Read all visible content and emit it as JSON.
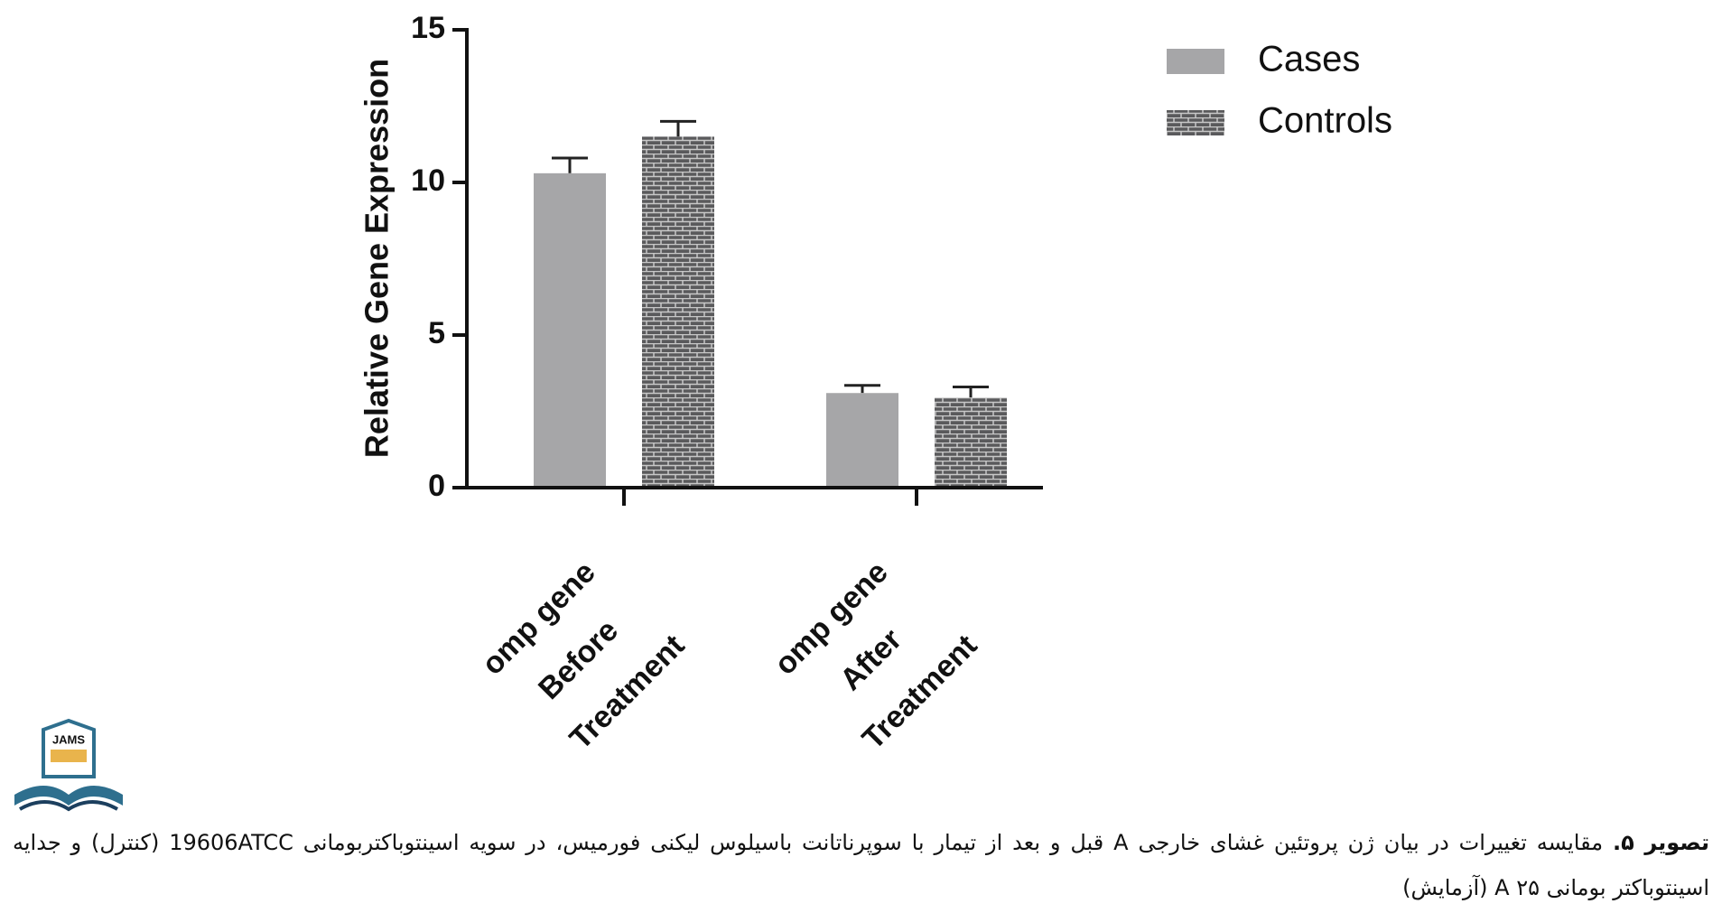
{
  "chart_data": {
    "type": "bar",
    "ylabel": "Relative Gene Expression",
    "categories": [
      [
        "omp gene",
        "Before",
        "Treatment"
      ],
      [
        "omp gene",
        "After",
        "Treatment"
      ]
    ],
    "series": [
      {
        "name": "Cases",
        "color": "#a6a6a8",
        "values": [
          10.3,
          3.1
        ],
        "errors": [
          0.5,
          0.25
        ]
      },
      {
        "name": "Controls",
        "color": "#5a5a5c",
        "pattern": "brick",
        "values": [
          11.5,
          2.95
        ],
        "errors": [
          0.5,
          0.35
        ]
      }
    ],
    "ylim": [
      0,
      15
    ],
    "yticks": [
      0,
      5,
      10,
      15
    ],
    "grid": false,
    "legend": "upper right"
  },
  "logo": "JAMS",
  "caption": {
    "label": "تصویر ۵.",
    "text": "مقایسه تغییرات در بیان ژن پروتئین غشای خارجی A قبل و بعد از تیمار با سوپرناتانت باسیلوس لیکنی فورمیس، در سویه اسینتوباکتربومانی 19606ATCC (کنترل) و جدایه اسینتوباکتر بومانی ۲۵ A (آزمایش)"
  }
}
